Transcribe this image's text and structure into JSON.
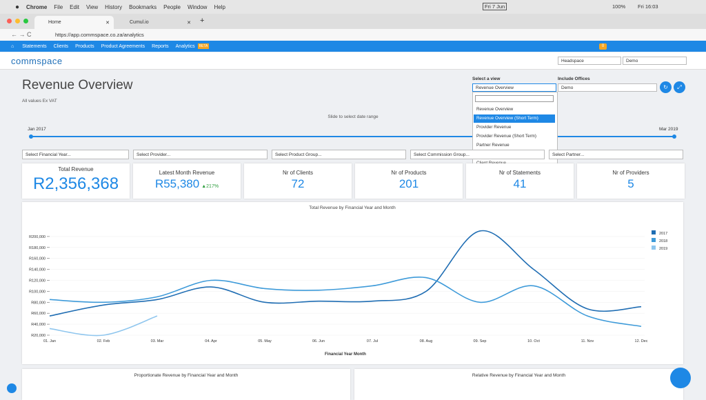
{
  "menubar": {
    "items": [
      "Chrome",
      "File",
      "Edit",
      "View",
      "History",
      "Bookmarks",
      "People",
      "Window",
      "Help"
    ],
    "date": "Fri 7 Jun",
    "battery": "100%",
    "clock": "Fri 16:03"
  },
  "tabs": [
    "Home",
    "Cumul.io"
  ],
  "url": "https://app.commspace.co.za/analytics",
  "nav": {
    "items": [
      "Statements",
      "Clients",
      "Products",
      "Product Agreements",
      "Reports",
      "Analytics"
    ],
    "beta": "BETA",
    "badge": "0"
  },
  "header": {
    "logo": "commspace",
    "selects": [
      "Headspace",
      "Demo"
    ]
  },
  "page": {
    "title": "Revenue Overview",
    "subtitle": "All values Ex VAT",
    "slider_label": "Slide to select date range",
    "slider_start": "Jan 2017",
    "slider_end": "Mar 2019"
  },
  "view": {
    "label": "Select a view",
    "selected": "Revenue Overview",
    "options": [
      "Revenue Overview",
      "Revenue Overview (Short Term)",
      "Provider Revenue",
      "Provider Revenue (Short Term)",
      "Partner Revenue",
      "Partner Allocation",
      "Client Revenue"
    ],
    "offices_label": "Include Offices",
    "offices_value": "Demo"
  },
  "filters": [
    "Select Financial Year...",
    "Select Provider...",
    "Select Product Group...",
    "Select Commission Group...",
    "Select Partner..."
  ],
  "kpis": [
    {
      "label": "Total Revenue",
      "value": "R2,356,368"
    },
    {
      "label": "Latest Month Revenue",
      "value": "R55,380",
      "change": "217%"
    },
    {
      "label": "Nr of Clients",
      "value": "72"
    },
    {
      "label": "Nr of Products",
      "value": "201"
    },
    {
      "label": "Nr of Statements",
      "value": "41"
    },
    {
      "label": "Nr of Providers",
      "value": "5"
    }
  ],
  "chart_data": {
    "type": "line",
    "title": "Total Revenue by Financial Year and Month",
    "x_label": "Financial Year Month",
    "categories": [
      "01. Jan",
      "02. Feb",
      "03. Mar",
      "04. Apr",
      "05. May",
      "06. Jun",
      "07. Jul",
      "08. Aug",
      "09. Sep",
      "10. Oct",
      "11. Nov",
      "12. Dec"
    ],
    "series": [
      {
        "name": "2017",
        "color": "#1f6db3",
        "values": [
          55000,
          75000,
          85000,
          108000,
          80000,
          82000,
          82000,
          100000,
          210000,
          140000,
          68000,
          72000
        ]
      },
      {
        "name": "2018",
        "color": "#3d9ad9",
        "values": [
          85000,
          80000,
          90000,
          120000,
          105000,
          102000,
          110000,
          125000,
          80000,
          110000,
          55000,
          36000
        ]
      },
      {
        "name": "2019",
        "color": "#8fc6ee",
        "values": [
          32000,
          20000,
          55000,
          null,
          null,
          null,
          null,
          null,
          null,
          null,
          null,
          null
        ]
      }
    ],
    "ylim": [
      20000,
      220000
    ],
    "yticks": [
      {
        "value": 20000,
        "label": "R20,000"
      },
      {
        "value": 40000,
        "label": "R40,000"
      },
      {
        "value": 60000,
        "label": "R60,000"
      },
      {
        "value": 80000,
        "label": "R80,000"
      },
      {
        "value": 100000,
        "label": "R100,000"
      },
      {
        "value": 120000,
        "label": "R120,000"
      },
      {
        "value": 140000,
        "label": "R140,000"
      },
      {
        "value": 160000,
        "label": "R160,000"
      },
      {
        "value": 180000,
        "label": "R180,000"
      },
      {
        "value": 200000,
        "label": "R200,000"
      }
    ],
    "grid": true,
    "legend": "right"
  },
  "bottom_panels": [
    "Proportionate Revenue by Financial Year and Month",
    "Relative Revenue by Financial Year and Month"
  ]
}
